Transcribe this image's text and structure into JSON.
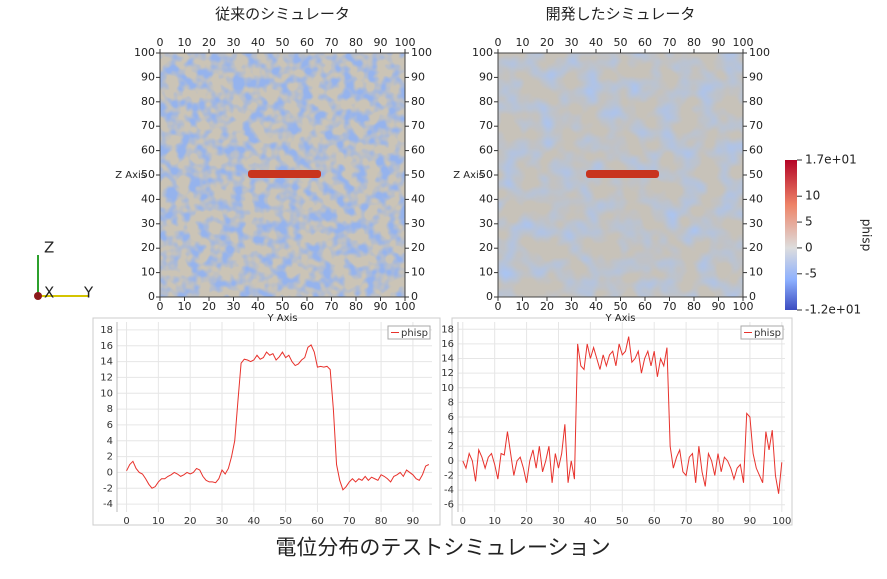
{
  "caption": "電位分布のテストシミュレーション",
  "axes_triad": [
    "Z",
    "X",
    "Y"
  ],
  "chart_data": [
    {
      "type": "heatmap",
      "title": "従来のシミュレータ",
      "xlabel": "Y Axis",
      "ylabel": "Z Axis",
      "xlim": [
        0,
        100
      ],
      "ylim": [
        0,
        100
      ],
      "xticks": [
        0,
        10,
        20,
        30,
        40,
        50,
        60,
        70,
        80,
        90,
        100
      ],
      "yticks": [
        0,
        10,
        20,
        30,
        40,
        50,
        60,
        70,
        80,
        90,
        100
      ]
    },
    {
      "type": "heatmap",
      "title": "開発したシミュレータ",
      "xlabel": "Y Axis",
      "ylabel": "Z Axis",
      "xlim": [
        0,
        100
      ],
      "ylim": [
        0,
        100
      ],
      "xticks": [
        0,
        10,
        20,
        30,
        40,
        50,
        60,
        70,
        80,
        90,
        100
      ],
      "yticks": [
        0,
        10,
        20,
        30,
        40,
        50,
        60,
        70,
        80,
        90,
        100
      ],
      "colorbar": {
        "label": "phisp",
        "range": [
          -12,
          17
        ],
        "ticks": [
          {
            "value": 17,
            "label": "1.7e+01"
          },
          10,
          5,
          0,
          -5,
          {
            "value": -12,
            "label": "-1.2e+01"
          }
        ]
      }
    },
    {
      "type": "line",
      "legend": "top-right",
      "grid": true,
      "xlim": [
        -3,
        96
      ],
      "ylim": [
        -5,
        19
      ],
      "xticks": [
        0,
        10,
        20,
        30,
        40,
        50,
        60,
        70,
        80,
        90
      ],
      "yticks": [
        -4,
        -2,
        0,
        2,
        4,
        6,
        8,
        10,
        12,
        14,
        16,
        18
      ],
      "x": [
        0,
        1,
        2,
        3,
        4,
        5,
        6,
        7,
        8,
        9,
        10,
        11,
        12,
        13,
        14,
        15,
        16,
        17,
        18,
        19,
        20,
        21,
        22,
        23,
        24,
        25,
        26,
        27,
        28,
        29,
        30,
        31,
        32,
        33,
        34,
        35,
        36,
        37,
        38,
        39,
        40,
        41,
        42,
        43,
        44,
        45,
        46,
        47,
        48,
        49,
        50,
        51,
        52,
        53,
        54,
        55,
        56,
        57,
        58,
        59,
        60,
        61,
        62,
        63,
        64,
        65,
        66,
        67,
        68,
        69,
        70,
        71,
        72,
        73,
        74,
        75,
        76,
        77,
        78,
        79,
        80,
        81,
        82,
        83,
        84,
        85,
        86,
        87,
        88,
        89,
        90,
        91,
        92,
        93,
        94,
        95
      ],
      "series": [
        {
          "name": "phisp",
          "color": "#e8322c",
          "values": [
            0.2,
            1,
            1.4,
            0.5,
            0,
            -0.2,
            -0.8,
            -1.5,
            -2,
            -1.8,
            -1.2,
            -0.8,
            -0.8,
            -0.5,
            -0.3,
            0,
            -0.2,
            -0.5,
            -0.3,
            0,
            -0.2,
            0,
            0.5,
            0.3,
            -0.5,
            -1,
            -1.2,
            -1.2,
            -1.3,
            -0.8,
            0.3,
            -0.2,
            0.5,
            2,
            4,
            9,
            13.8,
            14.3,
            14.2,
            14,
            14.2,
            14.8,
            14.3,
            14.5,
            15.2,
            14.8,
            15,
            14.2,
            14.6,
            15.2,
            14.5,
            14.8,
            14,
            13.5,
            13.7,
            14.2,
            14.5,
            15.8,
            16.1,
            15.2,
            13.3,
            13.4,
            13.3,
            13.4,
            13,
            8,
            1,
            -1,
            -2.2,
            -1.8,
            -1.2,
            -0.8,
            -1.2,
            -0.8,
            -1,
            -0.5,
            -1,
            -0.6,
            -0.8,
            -1,
            -0.3,
            -0.5,
            -0.8,
            -1.2,
            -0.5,
            -0.3,
            0,
            -0.5,
            0.3,
            0,
            -0.3,
            -0.8,
            -1,
            -0.3,
            0.8,
            1
          ]
        }
      ]
    },
    {
      "type": "line",
      "legend": "top-right",
      "grid": true,
      "xlim": [
        -1.5,
        101
      ],
      "ylim": [
        -7,
        19
      ],
      "xticks": [
        0,
        10,
        20,
        30,
        40,
        50,
        60,
        70,
        80,
        90,
        100
      ],
      "yticks": [
        -6,
        -4,
        -2,
        0,
        2,
        4,
        6,
        8,
        10,
        12,
        14,
        16,
        18
      ],
      "x": [
        0,
        1,
        2,
        3,
        4,
        5,
        6,
        7,
        8,
        9,
        10,
        11,
        12,
        13,
        14,
        15,
        16,
        17,
        18,
        19,
        20,
        21,
        22,
        23,
        24,
        25,
        26,
        27,
        28,
        29,
        30,
        31,
        32,
        33,
        34,
        35,
        36,
        37,
        38,
        39,
        40,
        41,
        42,
        43,
        44,
        45,
        46,
        47,
        48,
        49,
        50,
        51,
        52,
        53,
        54,
        55,
        56,
        57,
        58,
        59,
        60,
        61,
        62,
        63,
        64,
        65,
        66,
        67,
        68,
        69,
        70,
        71,
        72,
        73,
        74,
        75,
        76,
        77,
        78,
        79,
        80,
        81,
        82,
        83,
        84,
        85,
        86,
        87,
        88,
        89,
        90,
        91,
        92,
        93,
        94,
        95,
        96,
        97,
        98,
        99,
        100
      ],
      "series": [
        {
          "name": "phisp",
          "color": "#e8322c",
          "values": [
            0,
            -1,
            1,
            0,
            -2.8,
            1.5,
            0.5,
            -1,
            0.5,
            1,
            -0.5,
            -2.5,
            1,
            0.8,
            4,
            1,
            -2,
            0,
            0.5,
            -1,
            -3,
            0,
            1.5,
            -1,
            2,
            -1.5,
            0,
            2,
            -3,
            1,
            -1,
            1,
            5,
            -3,
            0,
            -2.5,
            16,
            13,
            12.5,
            16,
            14,
            15.5,
            14,
            12.5,
            14.5,
            13,
            14.5,
            15,
            13,
            16,
            14.5,
            15,
            17,
            13.5,
            14,
            15,
            12,
            14,
            15,
            13,
            15,
            11.5,
            14,
            13,
            15.5,
            2,
            -1,
            0.5,
            1.5,
            -1.5,
            -2,
            0.5,
            1,
            -3,
            2,
            -1.5,
            -3.5,
            1,
            0,
            -2,
            1,
            -1.5,
            0.5,
            0,
            -1,
            -2.5,
            -1,
            -0.5,
            -3,
            6.5,
            6,
            1,
            -1,
            -2,
            -3,
            4,
            1.5,
            4.2,
            -2,
            -4.5,
            -0.2
          ]
        }
      ]
    }
  ]
}
